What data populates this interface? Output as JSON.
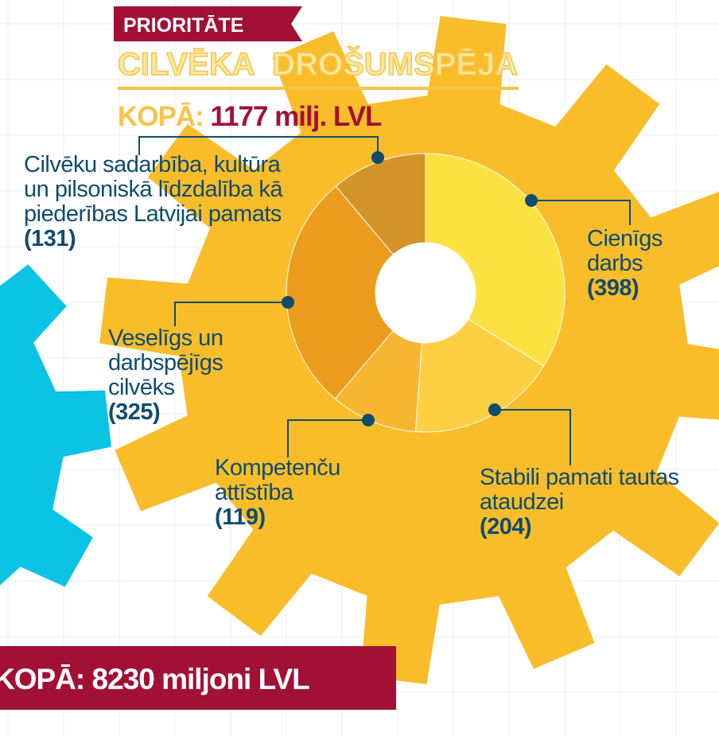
{
  "header": {
    "badge": "PRIORITĀTE",
    "total_label": "KOPĀ:",
    "total_value": "1177 milj. LVL"
  },
  "footer": {
    "total": "KOPĀ: 8230 miljoni LVL"
  },
  "chart_data": {
    "type": "donut",
    "title": "CILVĒKA DROŠUMSPĒJA",
    "categories": [
      "Cienīgs darbs",
      "Stabili pamati tautas ataudzei",
      "Kompetenču attīstība",
      "Veselīgs un darbspējīgs cilvēks",
      "Cilvēku sadarbība, kultūra un pilsoniskā līdzdalība kā piederības Latvijai pamats"
    ],
    "values": [
      398,
      204,
      119,
      325,
      131
    ],
    "value_labels": [
      "(398)",
      "(204)",
      "(119)",
      "(325)",
      "(131)"
    ],
    "colors": [
      "#fbe241",
      "#fdd043",
      "#f7b632",
      "#eb9c1c",
      "#d39329"
    ]
  }
}
